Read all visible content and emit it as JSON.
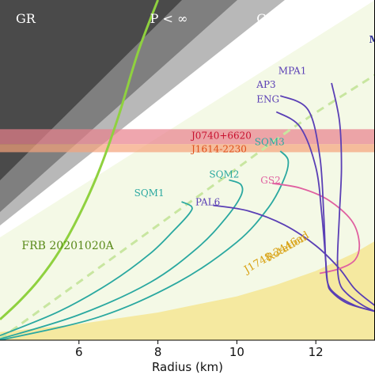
{
  "chart_data": {
    "type": "line",
    "title": "",
    "xlabel": "Radius (km)",
    "ylabel": "",
    "xlim": [
      4.0,
      13.5
    ],
    "ylim": [
      0.3,
      3.25
    ],
    "x_ticks": [
      6,
      8,
      10,
      12
    ],
    "regions": [
      {
        "name": "GR",
        "label": "GR",
        "color": "#4a4a4a",
        "label_at": [
          4.4,
          3.05
        ]
      },
      {
        "name": "P<inf",
        "label": "P < ∞",
        "color": "#7f7f7f",
        "label_at": [
          7.8,
          3.05
        ]
      },
      {
        "name": "Causality",
        "label": "Causality",
        "color": "#b8b8b8",
        "label_at": [
          10.5,
          3.05
        ]
      }
    ],
    "bands": [
      {
        "name": "J0740+6620",
        "label": "J0740+6620",
        "ymin": 2.0,
        "ymax": 2.13,
        "color": "#e8808c",
        "label_color": "#c8102e",
        "label_at": [
          8.85,
          2.07
        ]
      },
      {
        "name": "J1614-2230",
        "label": "J1614-2230",
        "ymin": 1.93,
        "ymax": 2.0,
        "color": "#f5a27a",
        "label_color": "#e0501a",
        "label_at": [
          8.85,
          1.955
        ]
      }
    ],
    "frb": {
      "label": "FRB 20201020A",
      "color": "#8fd13f",
      "label_color": "#5a8a1a",
      "label_at": [
        4.05,
        1.09
      ],
      "x": [
        4.0,
        4.5,
        5.0,
        5.5,
        6.0,
        6.5,
        7.0,
        7.5,
        8.0
      ],
      "y": [
        0.48,
        0.64,
        0.83,
        1.07,
        1.38,
        1.76,
        2.24,
        2.8,
        3.25
      ]
    },
    "dashed": {
      "color": "#c8e6a0",
      "x": [
        4.0,
        5.5,
        7.0,
        8.5,
        10.0,
        11.5,
        13.5
      ],
      "y": [
        0.31,
        0.68,
        1.05,
        1.42,
        1.79,
        2.16,
        2.6
      ]
    },
    "rotation": {
      "label": "Rotation",
      "label2": "J1748-2446ad",
      "color": "#f5e9a0",
      "label_color": "#d8a010",
      "label_at": [
        10.8,
        0.98
      ],
      "x": [
        4.0,
        6.0,
        8.0,
        10.0,
        11.0,
        12.0,
        13.0,
        13.5
      ],
      "y": [
        0.37,
        0.44,
        0.54,
        0.68,
        0.78,
        0.9,
        1.06,
        1.16
      ]
    },
    "series": [
      {
        "name": "SQM1",
        "label": "SQM1",
        "color": "#2aa8a0",
        "label_at": [
          7.4,
          1.55
        ],
        "x": [
          4.0,
          5.5,
          6.8,
          7.8,
          8.4,
          8.8,
          8.85,
          8.6
        ],
        "y": [
          0.34,
          0.55,
          0.8,
          1.05,
          1.25,
          1.4,
          1.46,
          1.5
        ]
      },
      {
        "name": "SQM2",
        "label": "SQM2",
        "color": "#2aa8a0",
        "label_at": [
          9.3,
          1.71
        ],
        "x": [
          4.0,
          6.0,
          7.8,
          9.0,
          9.7,
          10.1,
          10.1,
          9.8
        ],
        "y": [
          0.31,
          0.52,
          0.8,
          1.1,
          1.35,
          1.55,
          1.65,
          1.69
        ]
      },
      {
        "name": "SQM3",
        "label": "SQM3",
        "color": "#2aa8a0",
        "label_at": [
          10.45,
          1.99
        ],
        "x": [
          4.0,
          6.5,
          8.5,
          10.0,
          10.8,
          11.2,
          11.3,
          11.1
        ],
        "y": [
          0.3,
          0.5,
          0.8,
          1.15,
          1.45,
          1.7,
          1.86,
          1.94
        ]
      },
      {
        "name": "PAL6",
        "label": "PAL6",
        "color": "#5a3fb5",
        "label_at": [
          8.95,
          1.47
        ],
        "x": [
          9.4,
          10.3,
          11.2,
          12.0,
          12.6,
          13.0,
          13.5
        ],
        "y": [
          1.47,
          1.42,
          1.3,
          1.12,
          0.92,
          0.74,
          0.6
        ]
      },
      {
        "name": "GS2",
        "label": "GS2",
        "color": "#e060a0",
        "label_at": [
          10.6,
          1.66
        ],
        "x": [
          10.9,
          11.6,
          12.3,
          12.9,
          13.1,
          13.0,
          12.6,
          12.1
        ],
        "y": [
          1.66,
          1.62,
          1.52,
          1.34,
          1.15,
          1.0,
          0.92,
          0.88
        ]
      },
      {
        "name": "ENG",
        "label": "ENG",
        "color": "#5a3fb5",
        "label_at": [
          10.5,
          2.36
        ],
        "x": [
          11.0,
          11.6,
          12.0,
          12.15,
          12.25,
          12.3,
          12.4,
          12.8,
          13.5
        ],
        "y": [
          2.28,
          2.15,
          1.8,
          1.4,
          1.0,
          0.8,
          0.72,
          0.62,
          0.55
        ]
      },
      {
        "name": "AP3",
        "label": "AP3",
        "color": "#5a3fb5",
        "label_at": [
          10.5,
          2.49
        ],
        "x": [
          11.1,
          11.8,
          12.1,
          12.2,
          12.25,
          12.3,
          12.5,
          13.0,
          13.5
        ],
        "y": [
          2.42,
          2.3,
          1.9,
          1.4,
          1.0,
          0.8,
          0.7,
          0.6,
          0.55
        ]
      },
      {
        "name": "MPA1",
        "label": "MPA1",
        "color": "#5a3fb5",
        "label_at": [
          11.05,
          2.61
        ],
        "x": [
          12.4,
          12.6,
          12.65,
          12.6,
          12.55,
          12.6,
          12.8,
          13.2,
          13.5
        ],
        "y": [
          2.53,
          2.2,
          1.8,
          1.4,
          1.0,
          0.8,
          0.7,
          0.6,
          0.55
        ]
      }
    ],
    "partial_label": {
      "label": "M",
      "color": "#3a3a9a",
      "label_at": [
        13.35,
        2.88
      ]
    },
    "grid": false,
    "legend": "none"
  }
}
